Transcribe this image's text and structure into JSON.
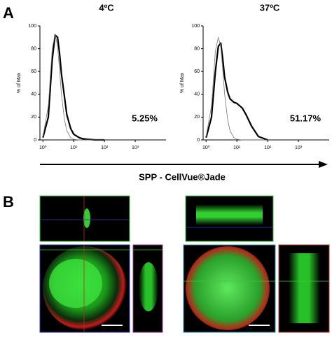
{
  "panel_labels": [
    "A",
    "B"
  ],
  "axis_caption": "SPP - CellVue®Jade",
  "chart_data": [
    {
      "type": "line",
      "title": "4ºC",
      "annotation": "5.25%",
      "ylabel": "% of Max",
      "xscale": "log",
      "xlim": [
        0.8,
        10000
      ],
      "ylim": [
        0,
        100
      ],
      "xticks": [
        {
          "value": 1,
          "label": "10⁰"
        },
        {
          "value": 10,
          "label": "10¹"
        },
        {
          "value": 100,
          "label": "10²"
        },
        {
          "value": 1000,
          "label": "10³"
        }
      ],
      "yticks": [
        0,
        20,
        40,
        60,
        80,
        100
      ],
      "x": [
        1,
        1.5,
        2,
        2.5,
        3,
        3.5,
        4,
        5,
        6,
        8,
        10,
        15,
        20,
        30,
        50,
        100
      ],
      "series": [
        {
          "color": "#000000",
          "line_width": 2.2,
          "values": [
            2,
            20,
            70,
            92,
            90,
            75,
            58,
            38,
            22,
            10,
            5,
            2,
            1,
            0.5,
            0,
            0
          ]
        },
        {
          "color": "#777777",
          "line_width": 0.8,
          "values": [
            3,
            30,
            80,
            93,
            82,
            60,
            40,
            18,
            8,
            2,
            0.5,
            0,
            0,
            0,
            0,
            0
          ]
        }
      ]
    },
    {
      "type": "line",
      "title": "37ºC",
      "annotation": "51.17%",
      "ylabel": "% of Max",
      "xscale": "log",
      "xlim": [
        0.8,
        10000
      ],
      "ylim": [
        0,
        100
      ],
      "xticks": [
        {
          "value": 1,
          "label": "10⁰"
        },
        {
          "value": 10,
          "label": "10¹"
        },
        {
          "value": 100,
          "label": "10²"
        },
        {
          "value": 1000,
          "label": "10³"
        }
      ],
      "yticks": [
        0,
        20,
        40,
        60,
        80,
        100
      ],
      "x": [
        1,
        1.5,
        2,
        2.5,
        3,
        3.5,
        4,
        5,
        6,
        8,
        10,
        15,
        20,
        30,
        50,
        100
      ],
      "series": [
        {
          "color": "#000000",
          "line_width": 2.2,
          "values": [
            2,
            20,
            60,
            82,
            85,
            70,
            55,
            42,
            36,
            33,
            32,
            28,
            22,
            12,
            3,
            0
          ]
        },
        {
          "color": "#777777",
          "line_width": 0.8,
          "values": [
            3,
            30,
            78,
            90,
            82,
            60,
            40,
            18,
            8,
            2,
            0.5,
            0,
            0,
            0,
            0,
            0
          ]
        }
      ]
    }
  ]
}
